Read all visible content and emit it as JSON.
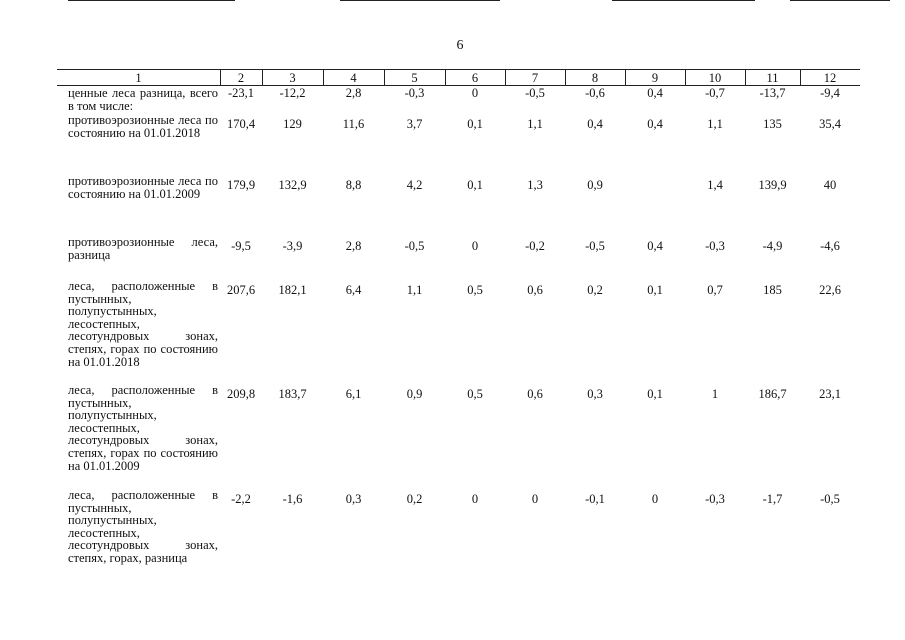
{
  "page_number": "6",
  "table": {
    "header": [
      "1",
      "2",
      "3",
      "4",
      "5",
      "6",
      "7",
      "8",
      "9",
      "10",
      "11",
      "12"
    ],
    "rows": [
      [
        "ценные леса разница, всего в том числе:",
        "-23,1",
        "-12,2",
        "2,8",
        "-0,3",
        "0",
        "-0,5",
        "-0,6",
        "0,4",
        "-0,7",
        "-13,7",
        "-9,4"
      ],
      [
        "противоэрозионные леса по состоянию на 01.01.2018",
        "170,4",
        "129",
        "11,6",
        "3,7",
        "0,1",
        "1,1",
        "0,4",
        "0,4",
        "1,1",
        "135",
        "35,4"
      ],
      [
        "противоэрозионные леса по состоянию на 01.01.2009",
        "179,9",
        "132,9",
        "8,8",
        "4,2",
        "0,1",
        "1,3",
        "0,9",
        null,
        "1,4",
        "139,9",
        "40"
      ],
      [
        "противоэрозионные леса, разница",
        "-9,5",
        "-3,9",
        "2,8",
        "-0,5",
        "0",
        "-0,2",
        "-0,5",
        "0,4",
        "-0,3",
        "-4,9",
        "-4,6"
      ],
      [
        "леса, расположенные в пустынных, полупустынных, лесостепных, лесотундровых зонах, степях, горах по состоянию на 01.01.2018",
        "207,6",
        "182,1",
        "6,4",
        "1,1",
        "0,5",
        "0,6",
        "0,2",
        "0,1",
        "0,7",
        "185",
        "22,6"
      ],
      [
        "леса, расположенные в пустынных, полупустынных, лесостепных, лесотундровых зонах, степях, горах по состоянию на 01.01.2009",
        "209,8",
        "183,7",
        "6,1",
        "0,9",
        "0,5",
        "0,6",
        "0,3",
        "0,1",
        "1",
        "186,7",
        "23,1"
      ],
      [
        "леса, расположенные в пустынных, полупустынных, лесостепных, лесотундровых зонах, степях, горах, разница",
        "-2,2",
        "-1,6",
        "0,3",
        "0,2",
        "0",
        "0",
        "-0,1",
        "0",
        "-0,3",
        "-1,7",
        "-0,5"
      ]
    ]
  }
}
